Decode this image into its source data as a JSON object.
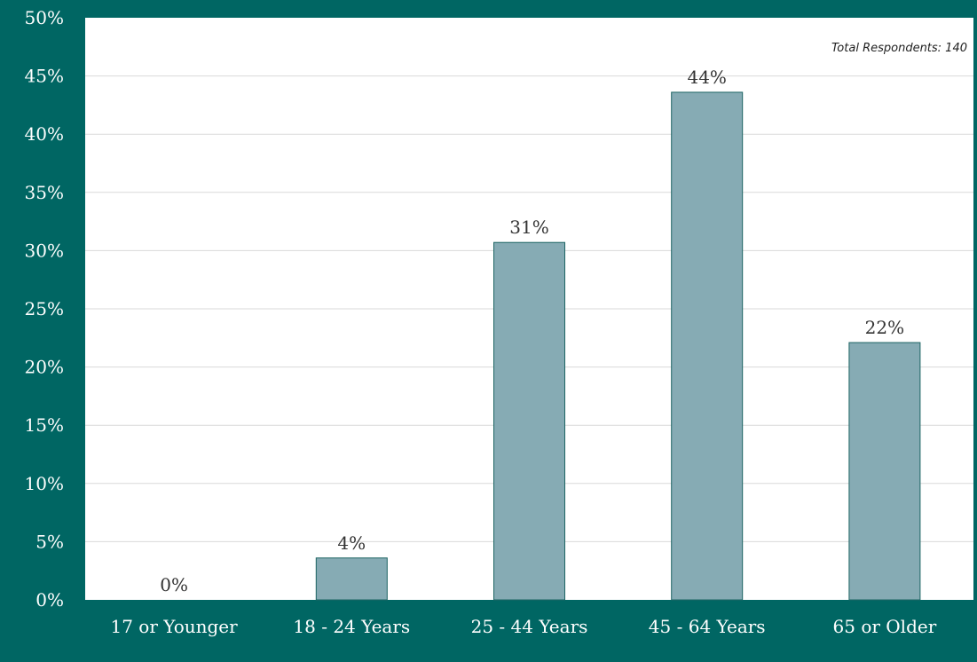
{
  "colors": {
    "background": "#006663",
    "plot_area": "#ffffff",
    "bar_fill": "#86abb4",
    "bar_stroke": "#1d6463",
    "grid": "#d9d9d9",
    "tick_text": "#ffffff",
    "value_text": "#333333"
  },
  "chart_data": {
    "type": "bar",
    "annotation": "Total Respondents: 140",
    "categories": [
      "17 or Younger",
      "18 - 24 Years",
      "25 - 44 Years",
      "45 - 64 Years",
      "65 or Older"
    ],
    "values": [
      0,
      3.6,
      30.7,
      43.6,
      22.1
    ],
    "value_labels": [
      "0%",
      "4%",
      "31%",
      "44%",
      "22%"
    ],
    "y_ticks": [
      "0%",
      "5%",
      "10%",
      "15%",
      "20%",
      "25%",
      "30%",
      "35%",
      "40%",
      "45%",
      "50%"
    ],
    "ylim": [
      0,
      50
    ],
    "y_unit": "%",
    "grid": true,
    "legend": false
  }
}
